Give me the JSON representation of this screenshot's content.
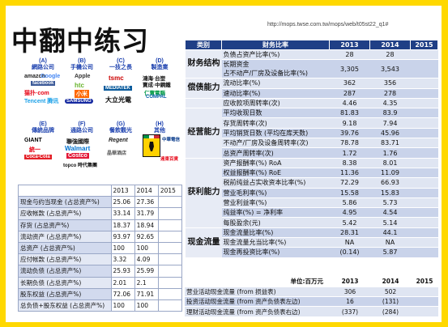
{
  "title": "中翻中练习",
  "url": "http://mops.twse.com.tw/mops/web/t05st22_q1#",
  "categories": [
    {
      "code": "(A)",
      "name": "網路公司"
    },
    {
      "code": "(B)",
      "name": "手機公司"
    },
    {
      "code": "(C)",
      "name": "一技之長"
    },
    {
      "code": "(D)",
      "name": "製造業"
    },
    {
      "code": "(E)",
      "name": "傳統品牌"
    },
    {
      "code": "(F)",
      "name": "通路公司"
    },
    {
      "code": "(G)",
      "name": "餐飲觀光"
    },
    {
      "code": "(H)",
      "name": "其他"
    }
  ],
  "logos": {
    "a": [
      "amazon",
      "Google",
      "facebook",
      "猫扑·com",
      "Tencent 腾讯"
    ],
    "b": [
      "Apple",
      "htc",
      "小米",
      "SAMSUNG"
    ],
    "c": [
      "tsmc",
      "MEDIATEK",
      "大立光電"
    ],
    "d": [
      "鴻海·台塑",
      "寶成·中鋼鐵",
      "仁寶電腦",
      "COMPAL"
    ],
    "e": [
      "GIANT",
      "統一",
      "Coca-Cola"
    ],
    "f": [
      "聯強國際",
      "Walmart",
      "Costco",
      "topco 時代集團"
    ],
    "g": [
      "Regent",
      "晶華酒店"
    ],
    "h": [
      "中華電信",
      "遠東百貨"
    ]
  },
  "left_table": {
    "headers": [
      "",
      "2013",
      "2014",
      "2015"
    ],
    "rows": [
      {
        "label": "现金与约当现金 (占总资产%)",
        "v2013": "25.06",
        "v2014": "27.36",
        "v2015": ""
      },
      {
        "label": "应收帐款 (占总资产%)",
        "v2013": "33.14",
        "v2014": "31.79",
        "v2015": ""
      },
      {
        "label": "存货 (占总资产%)",
        "v2013": "18.37",
        "v2014": "18.94",
        "v2015": ""
      },
      {
        "label": "流动资产 (占总资产%)",
        "v2013": "93.97",
        "v2014": "92.65",
        "v2015": ""
      },
      {
        "label": "总资产 (占总资产%)",
        "v2013": "100",
        "v2014": "100",
        "v2015": ""
      },
      {
        "label": "应付帐款 (占总资产%)",
        "v2013": "3.32",
        "v2014": "4.09",
        "v2015": ""
      },
      {
        "label": "流动负债 (占总资产%)",
        "v2013": "25.93",
        "v2014": "25.99",
        "v2015": ""
      },
      {
        "label": "长期负债 (占总资产%)",
        "v2013": "2.01",
        "v2014": "2.1",
        "v2015": ""
      },
      {
        "label": "股东权益 (占总资产%)",
        "v2013": "72.06",
        "v2014": "71.91",
        "v2015": ""
      },
      {
        "label": "总负债+股东权益 (占总资产%)",
        "v2013": "100",
        "v2014": "100",
        "v2015": ""
      }
    ]
  },
  "right_table": {
    "headers": [
      "类别",
      "财务比率",
      "2013",
      "2014",
      "2015"
    ],
    "groups": [
      {
        "name": "财务结构",
        "rows": [
          {
            "label": "负债占资产比率(%)",
            "v2013": "28",
            "v2014": "28",
            "v2015": ""
          },
          {
            "label": "长期资金\n占不动产/厂房及设备比率(%)",
            "v2013": "3,305",
            "v2014": "3,543",
            "v2015": ""
          }
        ]
      },
      {
        "name": "偿债能力",
        "rows": [
          {
            "label": "流动比率(%)",
            "v2013": "362",
            "v2014": "356",
            "v2015": ""
          },
          {
            "label": "速动比率(%)",
            "v2013": "287",
            "v2014": "278",
            "v2015": ""
          },
          {
            "label": "应收款项周转率(次)",
            "v2013": "4.46",
            "v2014": "4.35",
            "v2015": ""
          }
        ]
      },
      {
        "name": "经营能力",
        "rows": [
          {
            "label": "平均收现日数",
            "v2013": "81.83",
            "v2014": "83.9",
            "v2015": ""
          },
          {
            "label": "存货周转率(次)",
            "v2013": "9.18",
            "v2014": "7.94",
            "v2015": ""
          },
          {
            "label": "平均销货日数 (平均在库天数)",
            "v2013": "39.76",
            "v2014": "45.96",
            "v2015": ""
          },
          {
            "label": "不动产/厂房及设备周转率(次)",
            "v2013": "78.78",
            "v2014": "83.71",
            "v2015": ""
          },
          {
            "label": "总资产周转率(次)",
            "v2013": "1.72",
            "v2014": "1.76",
            "v2015": ""
          }
        ]
      },
      {
        "name": "获利能力",
        "rows": [
          {
            "label": "资产报酬率(%)  RoA",
            "v2013": "8.38",
            "v2014": "8.01",
            "v2015": ""
          },
          {
            "label": "权益报酬率(%)  RoE",
            "v2013": "11.36",
            "v2014": "11.09",
            "v2015": ""
          },
          {
            "label": "税前纯益占实收资本比率(%)",
            "v2013": "72.29",
            "v2014": "66.93",
            "v2015": ""
          },
          {
            "label": "营业毛利率(%)",
            "v2013": "15.58",
            "v2014": "15.83",
            "v2015": ""
          },
          {
            "label": "营业利益率(%)",
            "v2013": "5.86",
            "v2014": "5.73",
            "v2015": ""
          },
          {
            "label": "纯益率(%) = 净利率",
            "v2013": "4.95",
            "v2014": "4.54",
            "v2015": ""
          },
          {
            "label": "每股盈余(元)",
            "v2013": "5.42",
            "v2014": "5.14",
            "v2015": ""
          }
        ]
      },
      {
        "name": "现金流量",
        "rows": [
          {
            "label": "现金流量比率(%)",
            "v2013": "28.31",
            "v2014": "44.1",
            "v2015": ""
          },
          {
            "label": "现金流量允当比率(%)",
            "v2013": "NA",
            "v2014": "NA",
            "v2015": ""
          },
          {
            "label": "现金再投资比率(%)",
            "v2013": "(0.14)",
            "v2014": "5.87",
            "v2015": ""
          }
        ]
      }
    ]
  },
  "cash_table": {
    "unit_label": "单位:百万元",
    "headers": [
      "2013",
      "2014",
      "2015"
    ],
    "rows": [
      {
        "label": "营业活动现金流量 (from 损益表)",
        "v2013": "306",
        "v2014": "502",
        "v2015": ""
      },
      {
        "label": "投资活动现金流量 (from 资产负债表左边)",
        "v2013": "16",
        "v2014": "(131)",
        "v2015": ""
      },
      {
        "label": "理财活动现金流量 (from 资产负债表右边)",
        "v2013": "(337)",
        "v2014": "(284)",
        "v2015": ""
      }
    ]
  }
}
